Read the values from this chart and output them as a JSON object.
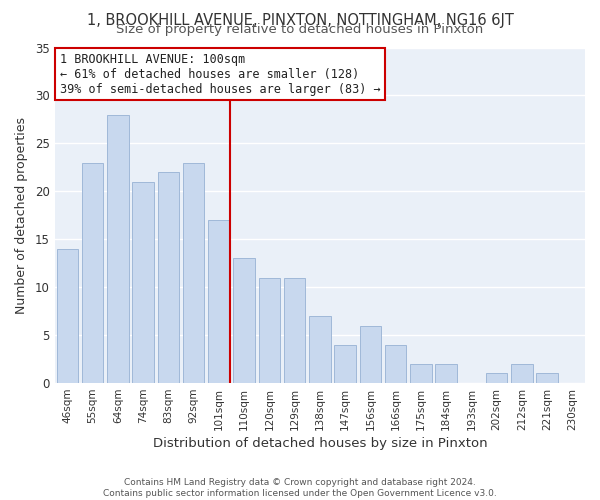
{
  "title": "1, BROOKHILL AVENUE, PINXTON, NOTTINGHAM, NG16 6JT",
  "subtitle": "Size of property relative to detached houses in Pinxton",
  "xlabel": "Distribution of detached houses by size in Pinxton",
  "ylabel": "Number of detached properties",
  "bar_labels": [
    "46sqm",
    "55sqm",
    "64sqm",
    "74sqm",
    "83sqm",
    "92sqm",
    "101sqm",
    "110sqm",
    "120sqm",
    "129sqm",
    "138sqm",
    "147sqm",
    "156sqm",
    "166sqm",
    "175sqm",
    "184sqm",
    "193sqm",
    "202sqm",
    "212sqm",
    "221sqm",
    "230sqm"
  ],
  "bar_values": [
    14,
    23,
    28,
    21,
    22,
    23,
    17,
    13,
    11,
    11,
    7,
    4,
    6,
    4,
    2,
    2,
    0,
    1,
    2,
    1,
    0
  ],
  "bar_color": "#c8d8ee",
  "bar_edgecolor": "#a0b8d8",
  "marker_index": 6,
  "marker_color": "#cc0000",
  "annotation_title": "1 BROOKHILL AVENUE: 100sqm",
  "annotation_line1": "← 61% of detached houses are smaller (128)",
  "annotation_line2": "39% of semi-detached houses are larger (83) →",
  "annotation_box_edgecolor": "#cc0000",
  "ylim": [
    0,
    35
  ],
  "yticks": [
    0,
    5,
    10,
    15,
    20,
    25,
    30,
    35
  ],
  "footer1": "Contains HM Land Registry data © Crown copyright and database right 2024.",
  "footer2": "Contains public sector information licensed under the Open Government Licence v3.0.",
  "background_color": "#eaf0f8",
  "fig_background": "#ffffff",
  "grid_color": "#ffffff",
  "title_fontsize": 10.5,
  "subtitle_fontsize": 9.5,
  "annotation_fontsize": 8.5
}
